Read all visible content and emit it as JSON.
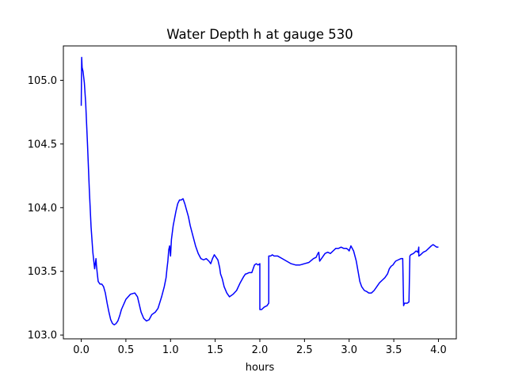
{
  "chart_data": {
    "type": "line",
    "title": "Water Depth h at gauge 530",
    "xlabel": "hours",
    "ylabel": "",
    "xlim": [
      -0.2,
      4.2
    ],
    "ylim": [
      102.97,
      105.27
    ],
    "grid": false,
    "x_ticks": [
      0.0,
      0.5,
      1.0,
      1.5,
      2.0,
      2.5,
      3.0,
      3.5,
      4.0
    ],
    "x_tick_labels": [
      "0.0",
      "0.5",
      "1.0",
      "1.5",
      "2.0",
      "2.5",
      "3.0",
      "3.5",
      "4.0"
    ],
    "y_ticks": [
      103.0,
      103.5,
      104.0,
      104.5,
      105.0
    ],
    "y_tick_labels": [
      "103.0",
      "103.5",
      "104.0",
      "104.5",
      "105.0"
    ],
    "series": [
      {
        "color": "#0000ff",
        "x": [
          0.0,
          0.005,
          0.01,
          0.02,
          0.035,
          0.05,
          0.07,
          0.09,
          0.11,
          0.13,
          0.15,
          0.165,
          0.17,
          0.18,
          0.19,
          0.2,
          0.21,
          0.23,
          0.25,
          0.27,
          0.29,
          0.31,
          0.33,
          0.35,
          0.37,
          0.39,
          0.41,
          0.43,
          0.45,
          0.5,
          0.55,
          0.6,
          0.63,
          0.65,
          0.67,
          0.7,
          0.73,
          0.76,
          0.79,
          0.83,
          0.86,
          0.9,
          0.93,
          0.95,
          0.96,
          0.97,
          0.98,
          0.99,
          1.0,
          1.01,
          1.03,
          1.06,
          1.08,
          1.1,
          1.12,
          1.14,
          1.16,
          1.18,
          1.2,
          1.22,
          1.25,
          1.28,
          1.31,
          1.34,
          1.37,
          1.4,
          1.43,
          1.45,
          1.47,
          1.49,
          1.5,
          1.53,
          1.55,
          1.56,
          1.58,
          1.6,
          1.63,
          1.66,
          1.7,
          1.74,
          1.78,
          1.82,
          1.84,
          1.85,
          1.88,
          1.91,
          1.94,
          1.96,
          1.98,
          2.0,
          2.0,
          2.02,
          2.05,
          2.08,
          2.1,
          2.1,
          2.12,
          2.14,
          2.16,
          2.2,
          2.25,
          2.3,
          2.35,
          2.4,
          2.45,
          2.5,
          2.55,
          2.6,
          2.63,
          2.65,
          2.66,
          2.67,
          2.7,
          2.73,
          2.76,
          2.79,
          2.82,
          2.85,
          2.88,
          2.91,
          2.94,
          2.97,
          2.99,
          3.0,
          3.02,
          3.05,
          3.08,
          3.1,
          3.12,
          3.14,
          3.17,
          3.2,
          3.22,
          3.25,
          3.28,
          3.31,
          3.34,
          3.37,
          3.4,
          3.43,
          3.45,
          3.47,
          3.49,
          3.5,
          3.52,
          3.55,
          3.58,
          3.6,
          3.61,
          3.62,
          3.65,
          3.67,
          3.68,
          3.69,
          3.72,
          3.75,
          3.77,
          3.78,
          3.78,
          3.8,
          3.83,
          3.86,
          3.89,
          3.92,
          3.94,
          3.96,
          3.98,
          4.0
        ],
        "y": [
          104.8,
          105.18,
          105.1,
          105.07,
          104.98,
          104.82,
          104.5,
          104.15,
          103.85,
          103.65,
          103.52,
          103.6,
          103.55,
          103.48,
          103.42,
          103.41,
          103.4,
          103.4,
          103.38,
          103.33,
          103.25,
          103.18,
          103.12,
          103.09,
          103.08,
          103.09,
          103.11,
          103.15,
          103.2,
          103.28,
          103.32,
          103.33,
          103.3,
          103.24,
          103.18,
          103.13,
          103.11,
          103.12,
          103.16,
          103.18,
          103.21,
          103.3,
          103.38,
          103.45,
          103.52,
          103.58,
          103.67,
          103.7,
          103.62,
          103.75,
          103.86,
          103.97,
          104.03,
          104.06,
          104.06,
          104.07,
          104.03,
          103.98,
          103.93,
          103.86,
          103.78,
          103.7,
          103.64,
          103.6,
          103.59,
          103.6,
          103.58,
          103.56,
          103.6,
          103.63,
          103.62,
          103.59,
          103.53,
          103.48,
          103.44,
          103.38,
          103.33,
          103.3,
          103.32,
          103.35,
          103.41,
          103.46,
          103.48,
          103.48,
          103.49,
          103.49,
          103.55,
          103.56,
          103.55,
          103.56,
          103.2,
          103.2,
          103.22,
          103.23,
          103.25,
          103.62,
          103.62,
          103.63,
          103.62,
          103.62,
          103.6,
          103.58,
          103.56,
          103.55,
          103.55,
          103.56,
          103.57,
          103.6,
          103.61,
          103.64,
          103.65,
          103.58,
          103.61,
          103.64,
          103.65,
          103.64,
          103.66,
          103.68,
          103.68,
          103.69,
          103.68,
          103.68,
          103.67,
          103.66,
          103.7,
          103.66,
          103.58,
          103.5,
          103.42,
          103.38,
          103.35,
          103.34,
          103.33,
          103.33,
          103.35,
          103.38,
          103.41,
          103.43,
          103.45,
          103.48,
          103.52,
          103.54,
          103.55,
          103.56,
          103.58,
          103.59,
          103.6,
          103.6,
          103.23,
          103.25,
          103.25,
          103.26,
          103.62,
          103.63,
          103.64,
          103.66,
          103.65,
          103.69,
          103.62,
          103.63,
          103.65,
          103.66,
          103.68,
          103.7,
          103.71,
          103.7,
          103.69,
          103.69
        ]
      }
    ]
  }
}
